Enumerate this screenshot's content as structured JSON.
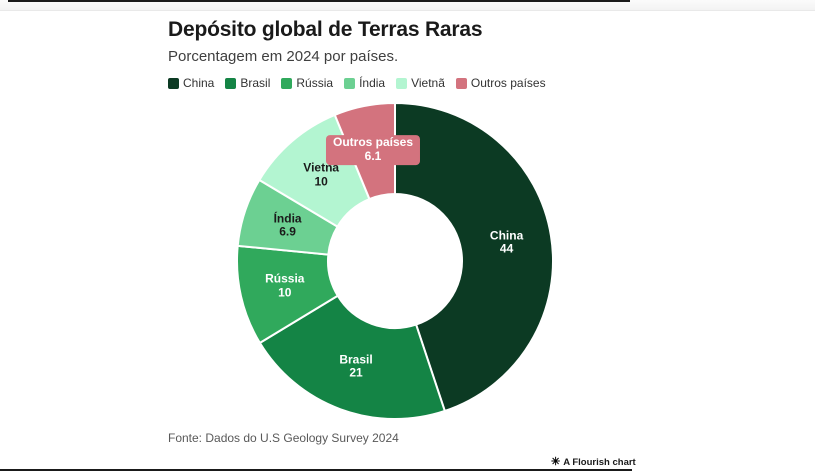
{
  "header": {
    "title": "Depósito global de Terras Raras",
    "subtitle": "Porcentagem em 2024 por países."
  },
  "footer": {
    "source": "Fonte: Dados do U.S Geology Survey 2024"
  },
  "attribution": {
    "label": "A Flourish chart",
    "icon": "flourish-asterisk"
  },
  "colors": {
    "background": "#ffffff",
    "slice_border": "#ffffff",
    "title_text": "#1a1a1a",
    "subtitle_text": "#3f3f3f",
    "legend_text": "#333333",
    "source_text": "#595959"
  },
  "chart_data": {
    "type": "pie",
    "variant": "donut",
    "title": "Depósito global de Terras Raras",
    "subtitle": "Porcentagem em 2024 por países.",
    "value_unit": "percent",
    "legend_position": "top",
    "start_angle_deg": 0,
    "direction": "clockwise",
    "slices": [
      {
        "label": "China",
        "value": 44,
        "display_value": "44",
        "color": "#0c3a23",
        "label_color": "#ffffff",
        "label_pill": false
      },
      {
        "label": "Brasil",
        "value": 21,
        "display_value": "21",
        "color": "#148445",
        "label_color": "#ffffff",
        "label_pill": false
      },
      {
        "label": "Rússia",
        "value": 10,
        "display_value": "10",
        "color": "#30a95c",
        "label_color": "#ffffff",
        "label_pill": false
      },
      {
        "label": "Índia",
        "value": 6.9,
        "display_value": "6.9",
        "color": "#6cd092",
        "label_color": "#1a1a1a",
        "label_pill": false
      },
      {
        "label": "Vietnã",
        "value": 10,
        "display_value": "10",
        "color": "#b3f5d1",
        "label_color": "#1a1a1a",
        "label_pill": false
      },
      {
        "label": "Outros países",
        "value": 6.1,
        "display_value": "6.1",
        "color": "#d3737e",
        "label_color": "#ffffff",
        "label_pill": true
      }
    ]
  }
}
